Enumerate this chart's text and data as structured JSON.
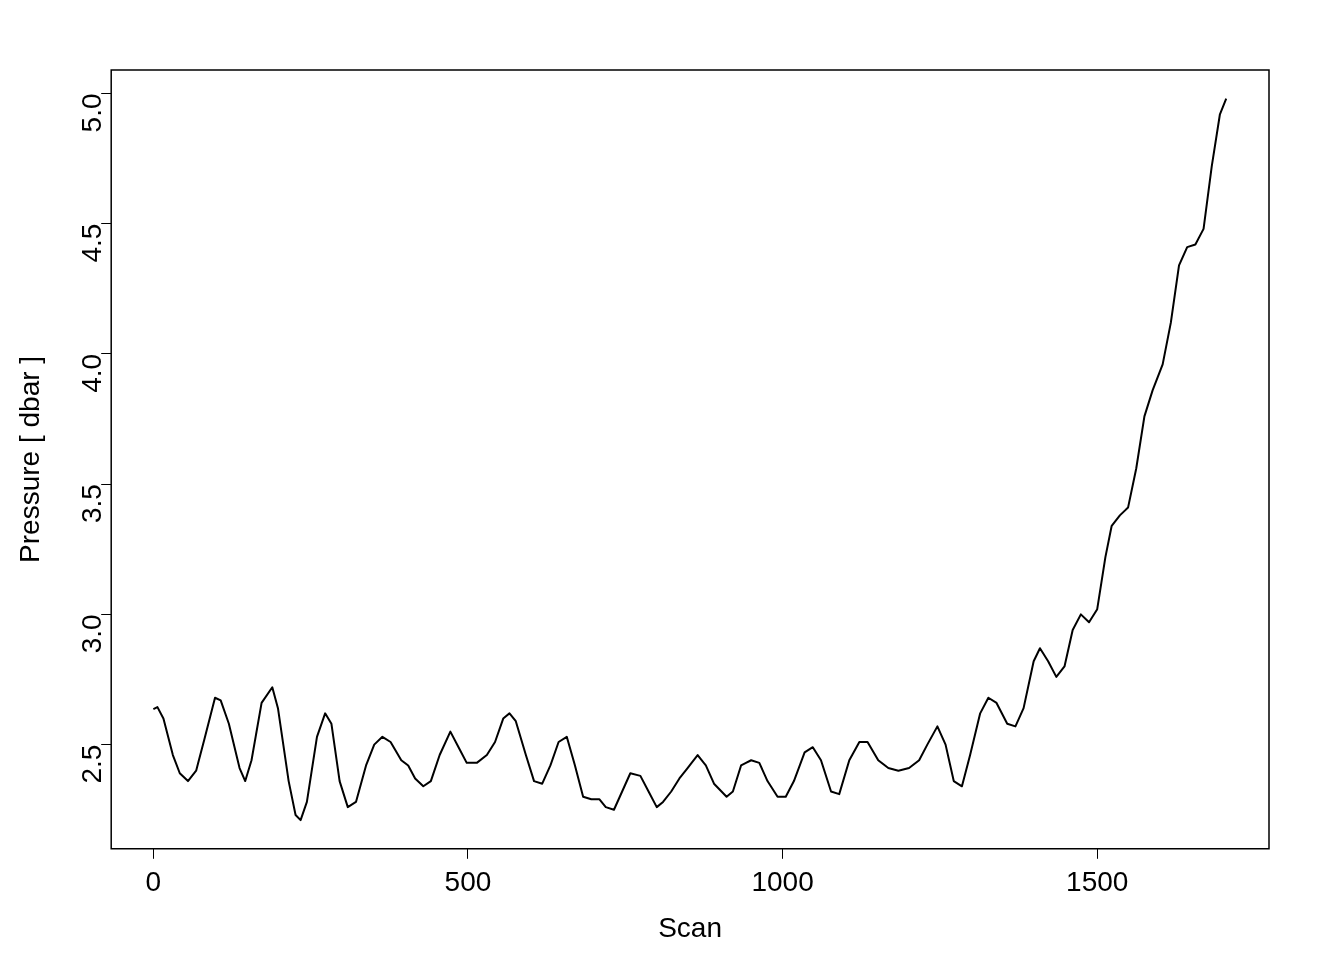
{
  "chart_data": {
    "type": "line",
    "xlabel": "Scan",
    "ylabel": "Pressure [ dbar ]",
    "color": "#000000",
    "x": [
      0,
      6.5,
      16,
      31,
      42,
      55,
      68,
      81,
      98,
      107,
      120,
      137,
      146,
      156,
      172,
      189,
      198,
      215,
      226,
      234,
      244,
      260,
      273,
      283,
      296,
      309,
      322,
      338,
      351,
      364,
      377,
      394,
      405,
      416,
      429,
      441,
      455,
      472,
      485,
      498,
      514,
      530,
      543,
      556,
      566,
      576,
      592,
      605,
      618,
      631,
      644,
      657,
      670,
      683,
      696,
      709,
      719,
      732,
      745,
      758,
      774,
      787,
      800,
      810,
      823,
      836,
      849,
      865,
      878,
      891,
      911,
      921,
      934,
      950,
      963,
      976,
      992,
      1005,
      1018,
      1035,
      1048,
      1061,
      1077,
      1090,
      1106,
      1122,
      1135,
      1152,
      1168,
      1184,
      1201,
      1217,
      1230,
      1246,
      1259,
      1272,
      1285,
      1298,
      1314,
      1327,
      1340,
      1357,
      1370,
      1383,
      1399,
      1409,
      1422,
      1435,
      1448,
      1461,
      1474,
      1487,
      1500,
      1513,
      1523,
      1536,
      1549,
      1562,
      1575,
      1588,
      1604,
      1617,
      1630,
      1643,
      1656,
      1669,
      1682,
      1695,
      1705
    ],
    "values": [
      2.636,
      2.644,
      2.6,
      2.46,
      2.39,
      2.36,
      2.4,
      2.52,
      2.68,
      2.67,
      2.58,
      2.41,
      2.36,
      2.44,
      2.66,
      2.72,
      2.64,
      2.36,
      2.23,
      2.21,
      2.28,
      2.53,
      2.62,
      2.58,
      2.36,
      2.26,
      2.28,
      2.42,
      2.5,
      2.53,
      2.51,
      2.44,
      2.42,
      2.37,
      2.34,
      2.36,
      2.46,
      2.55,
      2.49,
      2.43,
      2.43,
      2.46,
      2.51,
      2.6,
      2.62,
      2.59,
      2.46,
      2.36,
      2.35,
      2.42,
      2.51,
      2.53,
      2.42,
      2.3,
      2.29,
      2.29,
      2.26,
      2.25,
      2.32,
      2.39,
      2.38,
      2.32,
      2.26,
      2.28,
      2.32,
      2.37,
      2.41,
      2.46,
      2.42,
      2.35,
      2.3,
      2.32,
      2.42,
      2.44,
      2.43,
      2.36,
      2.3,
      2.3,
      2.36,
      2.47,
      2.49,
      2.44,
      2.32,
      2.31,
      2.44,
      2.51,
      2.51,
      2.44,
      2.41,
      2.4,
      2.41,
      2.44,
      2.5,
      2.57,
      2.5,
      2.36,
      2.34,
      2.46,
      2.62,
      2.68,
      2.66,
      2.58,
      2.57,
      2.64,
      2.82,
      2.87,
      2.82,
      2.76,
      2.8,
      2.94,
      3.0,
      2.97,
      3.02,
      3.22,
      3.34,
      3.38,
      3.41,
      3.56,
      3.76,
      3.86,
      3.96,
      4.12,
      4.34,
      4.41,
      4.42,
      4.48,
      4.72,
      4.92,
      4.98
    ],
    "xlim": [
      -67,
      1773
    ],
    "ylim": [
      2.1,
      5.09
    ],
    "xticks": [
      0,
      500,
      1000,
      1500
    ],
    "yticks": [
      {
        "value": 2.5,
        "label": "2.5"
      },
      {
        "value": 3,
        "label": "3.0"
      },
      {
        "value": 3.5,
        "label": "3.5"
      },
      {
        "value": 4,
        "label": "4.0"
      },
      {
        "value": 4.5,
        "label": "4.5"
      },
      {
        "value": 5,
        "label": "5.0"
      }
    ]
  }
}
